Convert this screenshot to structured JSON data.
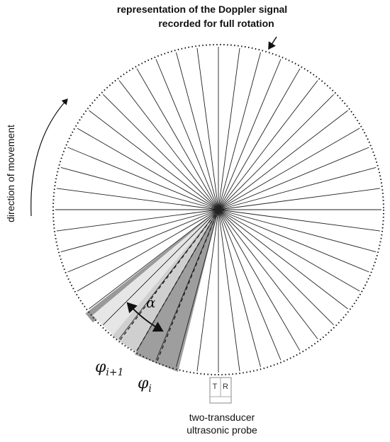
{
  "title": {
    "line1": "representation of the Doppler signal",
    "line2": "recorded for full rotation"
  },
  "direction_label": "direction of movement",
  "alpha": "α",
  "phi_next": {
    "symbol": "φ",
    "subscript": "i+1"
  },
  "phi": {
    "symbol": "φ",
    "subscript": "i"
  },
  "probe": {
    "left": "T",
    "right": "R",
    "label_line1": "two-transducer",
    "label_line2": "ultrasonic probe"
  }
}
